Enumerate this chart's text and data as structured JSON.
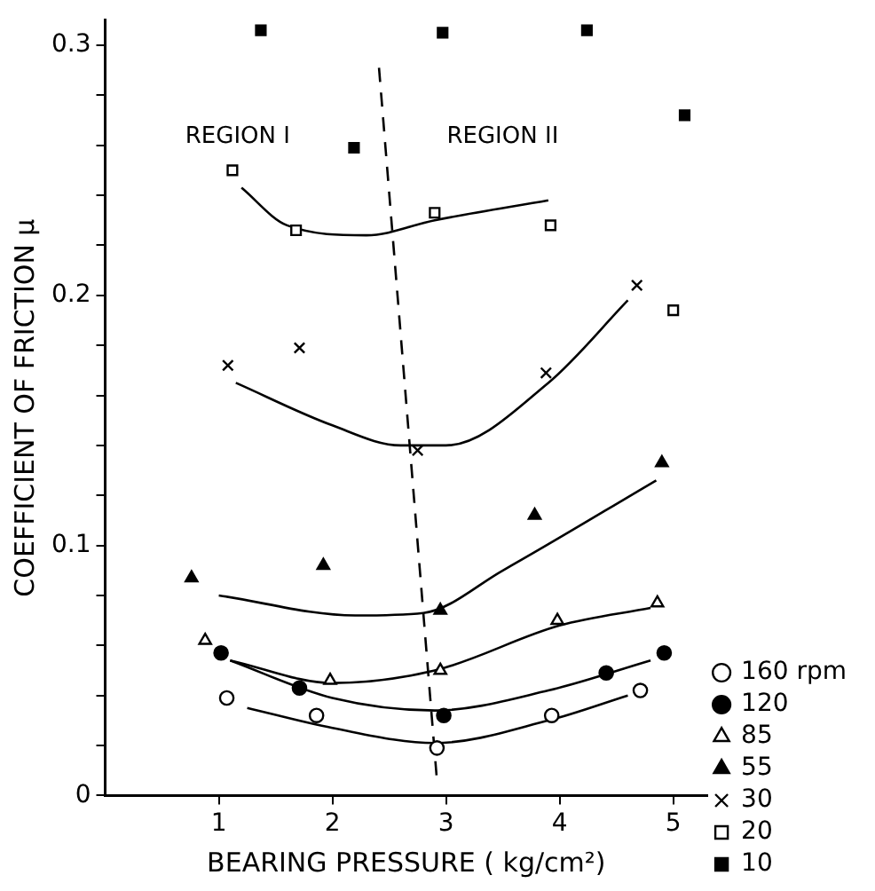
{
  "chart_data": {
    "type": "scatter",
    "xlabel": "BEARING PRESSURE ( kg/cm²)",
    "ylabel": "COEFFICIENT OF FRICTION μ",
    "xlim": [
      0,
      5.3
    ],
    "xticks": [
      1,
      2,
      3,
      4,
      5
    ],
    "ylim": [
      0,
      0.31
    ],
    "yticks": [
      0,
      {
        "value": 0.02,
        "label": null
      },
      {
        "value": 0.04,
        "label": null
      },
      {
        "value": 0.06,
        "label": null
      },
      {
        "value": 0.08,
        "label": null
      },
      0.1,
      {
        "value": 0.12,
        "label": null
      },
      {
        "value": 0.14,
        "label": null
      },
      {
        "value": 0.16,
        "label": null
      },
      {
        "value": 0.18,
        "label": null
      },
      0.2,
      {
        "value": 0.22,
        "label": null
      },
      {
        "value": 0.24,
        "label": null
      },
      {
        "value": 0.26,
        "label": null
      },
      {
        "value": 0.28,
        "label": null
      },
      0.3
    ],
    "grid": false,
    "legend": "right",
    "annotations": [
      "REGION I",
      "REGION II"
    ],
    "series": [
      {
        "name": "160 rpm",
        "color": "#ffffff",
        "marker": "circle",
        "x": [
          1.07,
          1.86,
          2.92,
          3.93,
          4.71
        ],
        "values": [
          0.039,
          0.032,
          0.019,
          0.032,
          0.042
        ]
      },
      {
        "name": "120",
        "color": "#000000",
        "marker": "circle",
        "x": [
          1.02,
          1.71,
          2.98,
          4.41,
          4.92
        ],
        "values": [
          0.057,
          0.043,
          0.032,
          0.049,
          0.057
        ]
      },
      {
        "name": "85",
        "color": "#ffffff",
        "marker": "triangle",
        "x": [
          0.88,
          1.98,
          2.95,
          3.98,
          4.86
        ],
        "values": [
          0.062,
          0.046,
          0.05,
          0.07,
          0.077
        ]
      },
      {
        "name": "55",
        "color": "#000000",
        "marker": "triangle",
        "x": [
          0.76,
          1.92,
          2.95,
          3.78,
          4.9
        ],
        "values": [
          0.087,
          0.092,
          0.074,
          0.112,
          0.133
        ]
      },
      {
        "name": "30",
        "color": "#000000",
        "marker": "cross",
        "x": [
          1.08,
          1.71,
          2.75,
          3.88,
          4.68
        ],
        "values": [
          0.172,
          0.179,
          0.138,
          0.169,
          0.204
        ]
      },
      {
        "name": "20",
        "color": "#ffffff",
        "marker": "square",
        "x": [
          1.12,
          1.68,
          2.9,
          3.92,
          5.0
        ],
        "values": [
          0.25,
          0.226,
          0.233,
          0.228,
          0.194
        ]
      },
      {
        "name": "10",
        "color": "#000000",
        "marker": "square",
        "x": [
          1.37,
          2.19,
          2.97,
          4.24,
          5.1
        ],
        "values": [
          0.306,
          0.259,
          0.305,
          0.306,
          0.272
        ]
      },
      {
        "type": "line",
        "color": "#000000",
        "line_style": "solid",
        "x": [
          1.25,
          2.0,
          2.9,
          3.9,
          4.6
        ],
        "values": [
          0.035,
          0.027,
          0.021,
          0.03,
          0.04
        ]
      },
      {
        "type": "line",
        "color": "#000000",
        "line_style": "solid",
        "x": [
          1.1,
          2.0,
          2.9,
          3.9,
          4.8
        ],
        "values": [
          0.054,
          0.039,
          0.034,
          0.042,
          0.054
        ]
      },
      {
        "type": "line",
        "color": "#000000",
        "line_style": "solid",
        "x": [
          1.1,
          2.0,
          2.9,
          4.0,
          4.8
        ],
        "values": [
          0.054,
          0.045,
          0.05,
          0.068,
          0.075
        ]
      },
      {
        "type": "line",
        "color": "#000000",
        "line_style": "solid",
        "x": [
          1.0,
          2.2,
          2.8,
          3.5,
          4.85
        ],
        "values": [
          0.08,
          0.072,
          0.073,
          0.09,
          0.126
        ]
      },
      {
        "type": "line",
        "color": "#000000",
        "line_style": "solid",
        "x": [
          1.15,
          2.0,
          2.6,
          3.0,
          3.9,
          4.6
        ],
        "values": [
          0.165,
          0.148,
          0.14,
          0.14,
          0.165,
          0.198
        ]
      },
      {
        "type": "line",
        "color": "#000000",
        "line_style": "solid",
        "x": [
          1.2,
          1.6,
          2.3,
          2.9,
          3.9
        ],
        "values": [
          0.243,
          0.228,
          0.224,
          0.23,
          0.238
        ]
      },
      {
        "type": "line",
        "color": "#000000",
        "line_style": "dashed",
        "x": [
          2.41,
          2.92
        ],
        "values": [
          0.291,
          0.006
        ]
      }
    ]
  }
}
